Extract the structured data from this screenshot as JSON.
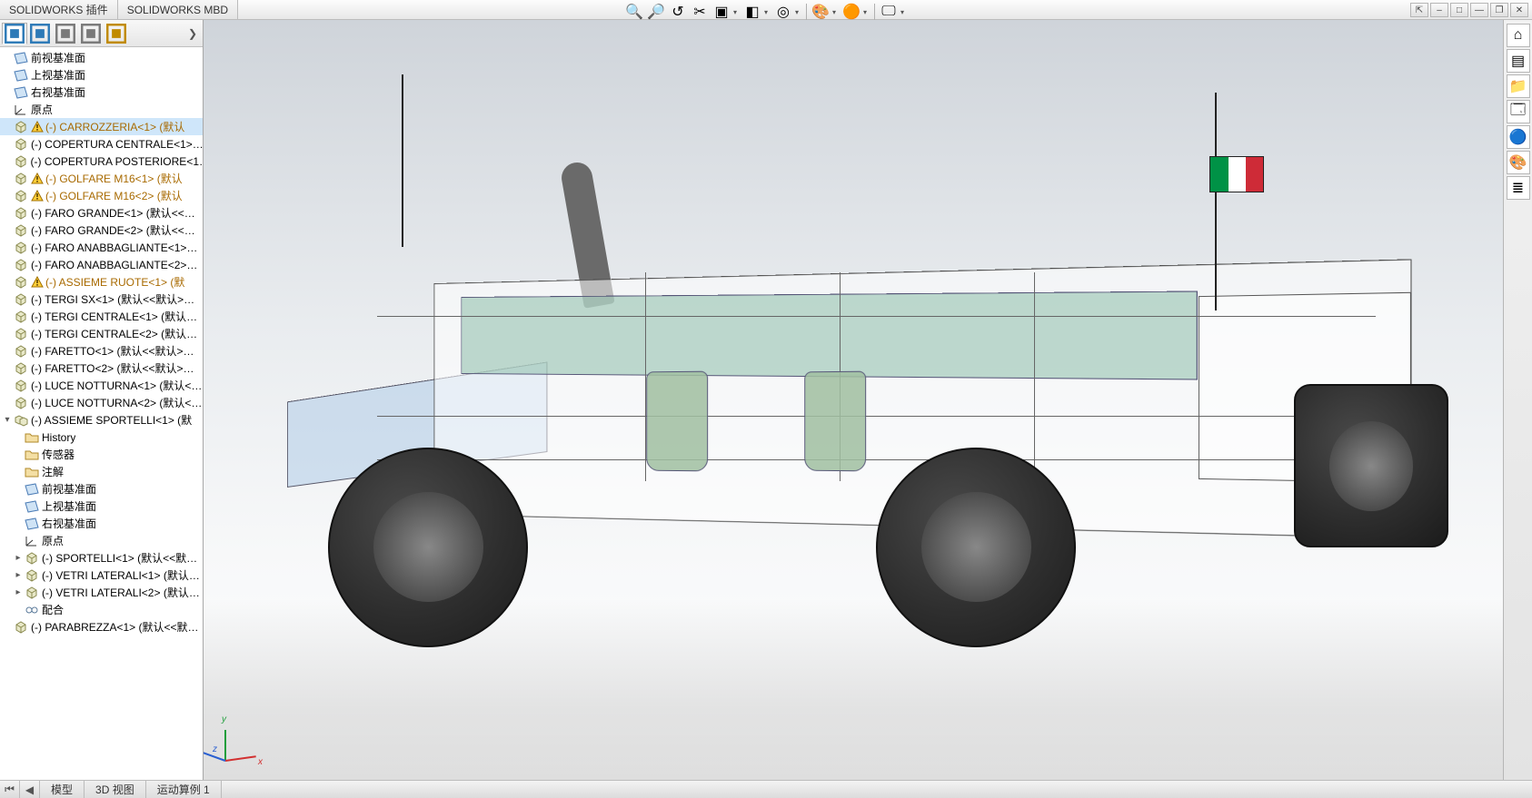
{
  "menubar": {
    "tabs": [
      "SOLIDWORKS 插件",
      "SOLIDWORKS MBD"
    ]
  },
  "window_controls": {
    "auto_collapse_icon": "⇱",
    "doc_min_icon": "–",
    "doc_max_icon": "□",
    "app_min_icon": "—",
    "app_max_icon": "❐",
    "app_close_icon": "✕"
  },
  "view_toolbar": {
    "tools": [
      {
        "name": "zoom-to-fit-icon",
        "glyph": "🔍"
      },
      {
        "name": "zoom-area-icon",
        "glyph": "🔎"
      },
      {
        "name": "previous-view-icon",
        "glyph": "↺"
      },
      {
        "name": "section-view-icon",
        "glyph": "✂"
      },
      {
        "name": "view-orientation-icon",
        "glyph": "▣",
        "dropdown": true
      },
      {
        "name": "display-style-icon",
        "glyph": "◧",
        "dropdown": true
      },
      {
        "name": "hide-show-icon",
        "glyph": "◎",
        "dropdown": true
      },
      {
        "separator": true
      },
      {
        "name": "edit-appearance-icon",
        "glyph": "🎨",
        "dropdown": true
      },
      {
        "name": "apply-scene-icon",
        "glyph": "🟠",
        "dropdown": true
      },
      {
        "separator": true
      },
      {
        "name": "view-settings-icon",
        "glyph": "🖵",
        "dropdown": true
      }
    ]
  },
  "feature_manager": {
    "tabs": [
      {
        "name": "feature-tree-tab",
        "glyph_color": "#2d7ab7",
        "active": true
      },
      {
        "name": "property-manager-tab",
        "glyph_color": "#2d7ab7"
      },
      {
        "name": "configuration-tab",
        "glyph_color": "#7a7a7a"
      },
      {
        "name": "dimxpert-tab",
        "glyph_color": "#7a7a7a"
      },
      {
        "name": "display-manager-tab",
        "glyph_color": "#c08a00"
      }
    ],
    "arrow": "❯",
    "tree": [
      {
        "icon": "plane",
        "label": "前视基准面",
        "indent": 0
      },
      {
        "icon": "plane",
        "label": "上视基准面",
        "indent": 0
      },
      {
        "icon": "plane",
        "label": "右视基准面",
        "indent": 0
      },
      {
        "icon": "origin",
        "label": "原点",
        "indent": 0
      },
      {
        "icon": "part",
        "label": "(-) CARROZZERIA<1> (默认",
        "indent": 0,
        "selected": true,
        "warn": true
      },
      {
        "icon": "part",
        "label": "(-) COPERTURA CENTRALE<1>…",
        "indent": 0
      },
      {
        "icon": "part",
        "label": "(-) COPERTURA POSTERIORE<1…",
        "indent": 0
      },
      {
        "icon": "part",
        "label": "(-) GOLFARE M16<1> (默认",
        "indent": 0,
        "warn": true
      },
      {
        "icon": "part",
        "label": "(-) GOLFARE M16<2> (默认",
        "indent": 0,
        "warn": true
      },
      {
        "icon": "part",
        "label": "(-) FARO GRANDE<1> (默认<<…",
        "indent": 0
      },
      {
        "icon": "part",
        "label": "(-) FARO GRANDE<2> (默认<<…",
        "indent": 0
      },
      {
        "icon": "part",
        "label": "(-) FARO ANABBAGLIANTE<1>…",
        "indent": 0
      },
      {
        "icon": "part",
        "label": "(-) FARO ANABBAGLIANTE<2>…",
        "indent": 0
      },
      {
        "icon": "part",
        "label": "(-) ASSIEME RUOTE<1> (默",
        "indent": 0,
        "warn": true
      },
      {
        "icon": "part",
        "label": "(-) TERGI SX<1> (默认<<默认>…",
        "indent": 0
      },
      {
        "icon": "part",
        "label": "(-) TERGI CENTRALE<1> (默认…",
        "indent": 0
      },
      {
        "icon": "part",
        "label": "(-) TERGI CENTRALE<2> (默认…",
        "indent": 0
      },
      {
        "icon": "part",
        "label": "(-) FARETTO<1> (默认<<默认>…",
        "indent": 0
      },
      {
        "icon": "part",
        "label": "(-) FARETTO<2> (默认<<默认>…",
        "indent": 0
      },
      {
        "icon": "part",
        "label": "(-) LUCE NOTTURNA<1> (默认<…",
        "indent": 0
      },
      {
        "icon": "part",
        "label": "(-) LUCE NOTTURNA<2> (默认<…",
        "indent": 0
      },
      {
        "icon": "assy",
        "label": "(-) ASSIEME SPORTELLI<1> (默",
        "indent": 0,
        "expanded": true
      },
      {
        "icon": "folder",
        "label": "History",
        "indent": 1
      },
      {
        "icon": "folder",
        "label": "传感器",
        "indent": 1
      },
      {
        "icon": "folder",
        "label": "注解",
        "indent": 1
      },
      {
        "icon": "plane",
        "label": "前视基准面",
        "indent": 1
      },
      {
        "icon": "plane",
        "label": "上视基准面",
        "indent": 1
      },
      {
        "icon": "plane",
        "label": "右视基准面",
        "indent": 1
      },
      {
        "icon": "origin",
        "label": "原点",
        "indent": 1
      },
      {
        "icon": "part",
        "label": "(-) SPORTELLI<1> (默认<<默…",
        "indent": 1,
        "expandable": true
      },
      {
        "icon": "part",
        "label": "(-) VETRI LATERALI<1> (默认…",
        "indent": 1,
        "expandable": true
      },
      {
        "icon": "part",
        "label": "(-) VETRI LATERALI<2> (默认…",
        "indent": 1,
        "expandable": true
      },
      {
        "icon": "mates",
        "label": "配合",
        "indent": 1
      },
      {
        "icon": "part",
        "label": "(-) PARABREZZA<1> (默认<<默…",
        "indent": 0
      }
    ]
  },
  "taskpane": {
    "items": [
      {
        "name": "home-icon",
        "glyph": "⌂"
      },
      {
        "name": "resources-icon",
        "glyph": "▤"
      },
      {
        "name": "design-library-icon",
        "glyph": "📁"
      },
      {
        "name": "file-explorer-icon",
        "glyph": "🗔"
      },
      {
        "name": "view-palette-icon",
        "glyph": "🔵"
      },
      {
        "name": "appearances-icon",
        "glyph": "🎨"
      },
      {
        "name": "custom-props-icon",
        "glyph": "≣"
      }
    ]
  },
  "viewport": {
    "triad": {
      "x": "x",
      "y": "y",
      "z": "z",
      "x_color": "#d23030",
      "y_color": "#1f9e3b",
      "z_color": "#2a5fd0"
    },
    "flag_colors": [
      "#009246",
      "#ffffff",
      "#ce2b37"
    ]
  },
  "bottombar": {
    "nav_first": "⏮",
    "nav_prev": "◀",
    "tabs": [
      "模型",
      "3D 视图",
      "运动算例 1"
    ]
  }
}
